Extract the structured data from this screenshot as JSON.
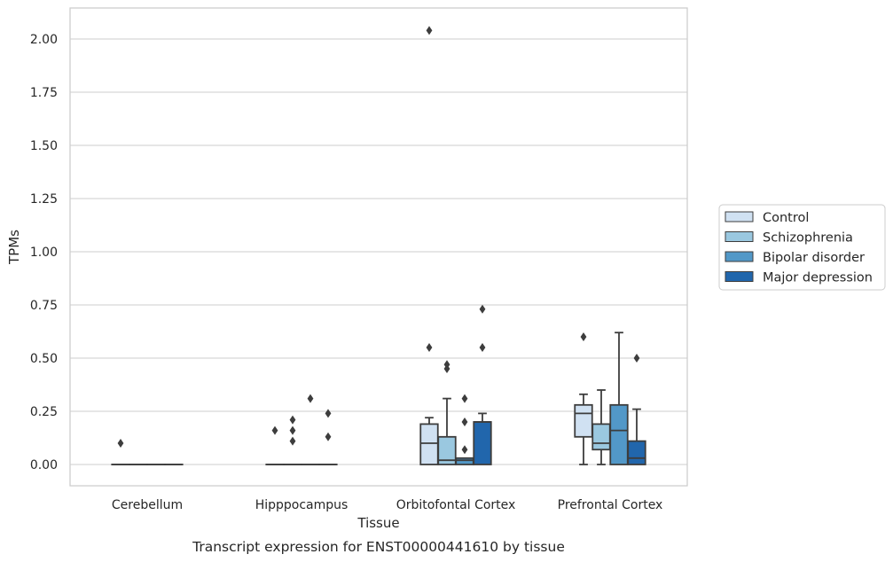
{
  "chart_data": {
    "type": "box",
    "title": "",
    "caption": "Transcript expression for ENST00000441610 by tissue",
    "xlabel": "Tissue",
    "ylabel": "TPMs",
    "ylim": [
      -0.1,
      2.15
    ],
    "yticks": [
      0.0,
      0.25,
      0.5,
      0.75,
      1.0,
      1.25,
      1.5,
      1.75,
      2.0
    ],
    "ytick_labels": [
      "0.00",
      "0.25",
      "0.50",
      "0.75",
      "1.00",
      "1.25",
      "1.50",
      "1.75",
      "2.00"
    ],
    "grid": "horizontal",
    "legend_position": "right",
    "categories": [
      "Cerebellum",
      "Hipppocampus",
      "Orbitofontal Cortex",
      "Prefrontal Cortex"
    ],
    "series": [
      {
        "name": "Control",
        "color": "#d0e1f2",
        "boxes": [
          {
            "whislo": 0,
            "q1": 0,
            "med": 0,
            "q3": 0,
            "whishi": 0,
            "fliers": [
              0.1
            ]
          },
          {
            "whislo": 0,
            "q1": 0,
            "med": 0,
            "q3": 0,
            "whishi": 0,
            "fliers": [
              0.16
            ]
          },
          {
            "whislo": 0,
            "q1": 0,
            "med": 0.1,
            "q3": 0.19,
            "whishi": 0.22,
            "fliers": [
              0.55,
              2.04
            ]
          },
          {
            "whislo": 0,
            "q1": 0.13,
            "med": 0.24,
            "q3": 0.28,
            "whishi": 0.33,
            "fliers": [
              0.6
            ]
          }
        ]
      },
      {
        "name": "Schizophrenia",
        "color": "#9ac8e0",
        "boxes": [
          {
            "whislo": 0,
            "q1": 0,
            "med": 0,
            "q3": 0,
            "whishi": 0,
            "fliers": []
          },
          {
            "whislo": 0,
            "q1": 0,
            "med": 0,
            "q3": 0,
            "whishi": 0,
            "fliers": [
              0.11,
              0.16,
              0.21
            ]
          },
          {
            "whislo": 0,
            "q1": 0,
            "med": 0.02,
            "q3": 0.13,
            "whishi": 0.31,
            "fliers": [
              0.45,
              0.47
            ]
          },
          {
            "whislo": 0,
            "q1": 0.07,
            "med": 0.1,
            "q3": 0.19,
            "whishi": 0.35,
            "fliers": []
          }
        ]
      },
      {
        "name": "Bipolar disorder",
        "color": "#5298c8",
        "boxes": [
          {
            "whislo": 0,
            "q1": 0,
            "med": 0,
            "q3": 0,
            "whishi": 0,
            "fliers": []
          },
          {
            "whislo": 0,
            "q1": 0,
            "med": 0,
            "q3": 0,
            "whishi": 0,
            "fliers": [
              0.31
            ]
          },
          {
            "whislo": 0,
            "q1": 0,
            "med": 0.02,
            "q3": 0.03,
            "whishi": 0.03,
            "fliers": [
              0.07,
              0.2,
              0.31
            ]
          },
          {
            "whislo": 0,
            "q1": 0,
            "med": 0.16,
            "q3": 0.28,
            "whishi": 0.62,
            "fliers": []
          }
        ]
      },
      {
        "name": "Major depression",
        "color": "#2166ac",
        "boxes": [
          {
            "whislo": 0,
            "q1": 0,
            "med": 0,
            "q3": 0,
            "whishi": 0,
            "fliers": []
          },
          {
            "whislo": 0,
            "q1": 0,
            "med": 0,
            "q3": 0,
            "whishi": 0,
            "fliers": [
              0.13,
              0.24
            ]
          },
          {
            "whislo": 0,
            "q1": 0,
            "med": 0.2,
            "q3": 0.2,
            "whishi": 0.24,
            "fliers": [
              0.55,
              0.73
            ]
          },
          {
            "whislo": 0,
            "q1": 0,
            "med": 0.03,
            "q3": 0.11,
            "whishi": 0.26,
            "fliers": [
              0.5
            ]
          }
        ]
      }
    ]
  }
}
